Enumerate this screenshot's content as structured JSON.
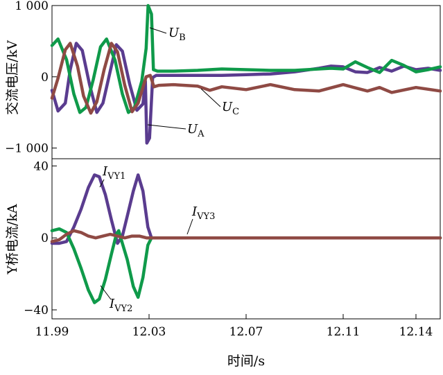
{
  "chart_data": [
    {
      "type": "line",
      "ylabel": "交流电压/kV",
      "xlim": [
        11.99,
        12.15
      ],
      "ylim": [
        -1150,
        1000
      ],
      "yticks": [
        {
          "value": 1000,
          "label": "1 000"
        },
        {
          "value": 0,
          "label": "0"
        },
        {
          "value": -1000,
          "label": "−1 000"
        }
      ],
      "series": [
        {
          "name_main": "U",
          "name_sub": "A",
          "color": "#5a3c8f",
          "points": [
            [
              11.99,
              -190
            ],
            [
              11.9925,
              -480
            ],
            [
              11.9955,
              -370
            ],
            [
              11.9975,
              100
            ],
            [
              12.0,
              470
            ],
            [
              12.0025,
              370
            ],
            [
              12.0055,
              -110
            ],
            [
              12.0085,
              -500
            ],
            [
              12.011,
              -370
            ],
            [
              12.014,
              80
            ],
            [
              12.0165,
              450
            ],
            [
              12.019,
              360
            ],
            [
              12.022,
              -100
            ],
            [
              12.025,
              -470
            ],
            [
              12.0275,
              -380
            ],
            [
              12.0285,
              -60
            ],
            [
              12.0291,
              -930
            ],
            [
              12.0302,
              -860
            ],
            [
              12.0315,
              -10
            ],
            [
              12.033,
              20
            ],
            [
              12.04,
              20
            ],
            [
              12.05,
              20
            ],
            [
              12.06,
              20
            ],
            [
              12.07,
              30
            ],
            [
              12.08,
              40
            ],
            [
              12.09,
              70
            ],
            [
              12.1,
              120
            ],
            [
              12.105,
              150
            ],
            [
              12.11,
              140
            ],
            [
              12.115,
              70
            ],
            [
              12.12,
              60
            ],
            [
              12.125,
              130
            ],
            [
              12.13,
              80
            ],
            [
              12.135,
              150
            ],
            [
              12.14,
              100
            ],
            [
              12.145,
              120
            ],
            [
              12.15,
              90
            ]
          ]
        },
        {
          "name_main": "U",
          "name_sub": "B",
          "color": "#0f9a4a",
          "points": [
            [
              11.99,
              440
            ],
            [
              11.9925,
              530
            ],
            [
              11.996,
              240
            ],
            [
              11.999,
              -240
            ],
            [
              12.0015,
              -500
            ],
            [
              12.004,
              -430
            ],
            [
              12.007,
              -40
            ],
            [
              12.01,
              420
            ],
            [
              12.0125,
              530
            ],
            [
              12.016,
              230
            ],
            [
              12.019,
              -240
            ],
            [
              12.0215,
              -500
            ],
            [
              12.024,
              -430
            ],
            [
              12.027,
              -60
            ],
            [
              12.0288,
              400
            ],
            [
              12.0296,
              1000
            ],
            [
              12.031,
              880
            ],
            [
              12.0318,
              100
            ],
            [
              12.0335,
              80
            ],
            [
              12.04,
              80
            ],
            [
              12.05,
              90
            ],
            [
              12.06,
              110
            ],
            [
              12.07,
              100
            ],
            [
              12.08,
              90
            ],
            [
              12.09,
              90
            ],
            [
              12.1,
              110
            ],
            [
              12.105,
              120
            ],
            [
              12.11,
              110
            ],
            [
              12.115,
              210
            ],
            [
              12.12,
              130
            ],
            [
              12.125,
              60
            ],
            [
              12.13,
              230
            ],
            [
              12.135,
              160
            ],
            [
              12.14,
              70
            ],
            [
              12.145,
              100
            ],
            [
              12.15,
              140
            ]
          ]
        },
        {
          "name_main": "U",
          "name_sub": "C",
          "color": "#8f4a44",
          "points": [
            [
              11.99,
              -300
            ],
            [
              11.9925,
              -20
            ],
            [
              11.9955,
              380
            ],
            [
              11.9975,
              470
            ],
            [
              12.0005,
              150
            ],
            [
              12.003,
              -270
            ],
            [
              12.006,
              -510
            ],
            [
              12.0085,
              -350
            ],
            [
              12.0115,
              100
            ],
            [
              12.0145,
              470
            ],
            [
              12.017,
              350
            ],
            [
              12.02,
              -120
            ],
            [
              12.023,
              -490
            ],
            [
              12.0255,
              -370
            ],
            [
              12.0288,
              0
            ],
            [
              12.0305,
              20
            ],
            [
              12.032,
              -140
            ],
            [
              12.034,
              -120
            ],
            [
              12.04,
              -110
            ],
            [
              12.05,
              -130
            ],
            [
              12.055,
              -190
            ],
            [
              12.06,
              -140
            ],
            [
              12.07,
              -180
            ],
            [
              12.08,
              -110
            ],
            [
              12.09,
              -180
            ],
            [
              12.1,
              -200
            ],
            [
              12.11,
              -110
            ],
            [
              12.12,
              -200
            ],
            [
              12.125,
              -150
            ],
            [
              12.13,
              -220
            ],
            [
              12.14,
              -150
            ],
            [
              12.15,
              -200
            ]
          ]
        }
      ],
      "annotations": [
        {
          "series_index": 1,
          "main": "U",
          "sub": "B"
        },
        {
          "series_index": 2,
          "main": "U",
          "sub": "C"
        },
        {
          "series_index": 0,
          "main": "U",
          "sub": "A"
        }
      ]
    },
    {
      "type": "line",
      "xlabel": "时间/s",
      "ylabel": "Y桥电流/kA",
      "xlim": [
        11.99,
        12.15
      ],
      "ylim": [
        -45,
        44
      ],
      "yticks": [
        {
          "value": 40,
          "label": "40"
        },
        {
          "value": 0,
          "label": "0"
        },
        {
          "value": -40,
          "label": "−40"
        }
      ],
      "xticks": [
        {
          "value": 11.99,
          "label": "11.99"
        },
        {
          "value": 12.03,
          "label": "12.03"
        },
        {
          "value": 12.07,
          "label": "12.07"
        },
        {
          "value": 12.11,
          "label": "12.11"
        },
        {
          "value": 12.14,
          "label": "12.14"
        }
      ],
      "series": [
        {
          "name_main": "I",
          "name_sub": "VY1",
          "color": "#5a3c8f",
          "points": [
            [
              11.99,
              -3
            ],
            [
              11.993,
              -3
            ],
            [
              11.996,
              -2
            ],
            [
              11.999,
              6
            ],
            [
              12.002,
              16
            ],
            [
              12.005,
              28
            ],
            [
              12.0075,
              35
            ],
            [
              12.0095,
              34
            ],
            [
              12.012,
              24
            ],
            [
              12.0145,
              10
            ],
            [
              12.017,
              -3
            ],
            [
              12.019,
              1
            ],
            [
              12.021,
              12
            ],
            [
              12.0235,
              26
            ],
            [
              12.0255,
              35
            ],
            [
              12.0275,
              26
            ],
            [
              12.0295,
              6
            ],
            [
              12.031,
              0
            ],
            [
              12.04,
              0
            ],
            [
              12.15,
              0
            ]
          ]
        },
        {
          "name_main": "I",
          "name_sub": "VY2",
          "color": "#0f9a4a",
          "points": [
            [
              11.99,
              4
            ],
            [
              11.993,
              5
            ],
            [
              11.996,
              3
            ],
            [
              11.999,
              -6
            ],
            [
              12.002,
              -17
            ],
            [
              12.005,
              -29
            ],
            [
              12.0075,
              -36
            ],
            [
              12.0095,
              -34
            ],
            [
              12.012,
              -23
            ],
            [
              12.0145,
              -9
            ],
            [
              12.0165,
              2
            ],
            [
              12.0175,
              4
            ],
            [
              12.019,
              -3
            ],
            [
              12.021,
              -12
            ],
            [
              12.0235,
              -27
            ],
            [
              12.0255,
              -33
            ],
            [
              12.0275,
              -22
            ],
            [
              12.0295,
              -4
            ],
            [
              12.031,
              0
            ],
            [
              12.04,
              0
            ],
            [
              12.15,
              0
            ]
          ]
        },
        {
          "name_main": "I",
          "name_sub": "VY3",
          "color": "#8f4a44",
          "points": [
            [
              11.99,
              -2
            ],
            [
              11.993,
              -1
            ],
            [
              11.996,
              2
            ],
            [
              11.999,
              4
            ],
            [
              12.002,
              3
            ],
            [
              12.005,
              1
            ],
            [
              12.008,
              0
            ],
            [
              12.011,
              1
            ],
            [
              12.014,
              2
            ],
            [
              12.017,
              1
            ],
            [
              12.02,
              0
            ],
            [
              12.023,
              1
            ],
            [
              12.026,
              1
            ],
            [
              12.029,
              0
            ],
            [
              12.04,
              0
            ],
            [
              12.15,
              0
            ]
          ]
        }
      ],
      "annotations": [
        {
          "series_index": 0,
          "main": "I",
          "sub": "VY1"
        },
        {
          "series_index": 2,
          "main": "I",
          "sub": "VY3"
        },
        {
          "series_index": 1,
          "main": "I",
          "sub": "VY2"
        }
      ]
    }
  ]
}
